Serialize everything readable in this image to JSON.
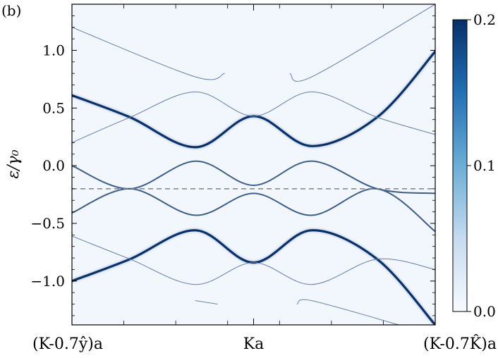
{
  "panel_label": "(b)",
  "chart_data": {
    "type": "heatmap",
    "title": "",
    "xlabel": "",
    "ylabel": "ε/γ₀",
    "xlim": [
      0,
      1
    ],
    "ylim": [
      -1.38,
      1.4
    ],
    "x_ticks": [
      {
        "x": 0.0,
        "label": "(K-0.7ŷ)a"
      },
      {
        "x": 0.5,
        "label": "Ka"
      },
      {
        "x": 1.0,
        "label": "(K-0.7K̂)a"
      }
    ],
    "y_ticks": [
      -1.0,
      -0.5,
      0.0,
      0.5,
      1.0
    ],
    "y_tick_labels": [
      "−1.0",
      "−0.5",
      "0.0",
      "0.5",
      "1.0"
    ],
    "dashed_line": {
      "y": -0.2,
      "color": "#7f7f7f"
    },
    "colorbar": {
      "min": 0.0,
      "max": 0.2,
      "ticks": [
        0.0,
        0.1,
        0.2
      ],
      "tick_labels": [
        "0.0",
        "0.1",
        "0.2"
      ],
      "colors": [
        "#f7fbff",
        "#08306b"
      ]
    },
    "series": [
      {
        "values": [
          [
            0,
            0.61
          ],
          [
            0.16,
            0.42
          ],
          [
            0.34,
            0.16
          ],
          [
            0.5,
            0.43
          ],
          [
            0.66,
            0.17
          ],
          [
            0.84,
            0.42
          ],
          [
            1,
            0.99
          ]
        ],
        "intensity": 0.2
      },
      {
        "values": [
          [
            0,
            -1.0
          ],
          [
            0.16,
            -0.81
          ],
          [
            0.34,
            -0.56
          ],
          [
            0.5,
            -0.84
          ],
          [
            0.66,
            -0.56
          ],
          [
            0.84,
            -0.81
          ],
          [
            1,
            -1.38
          ]
        ],
        "intensity": 0.2
      },
      {
        "values": [
          [
            0,
            0.0
          ],
          [
            0.16,
            -0.2
          ],
          [
            0.34,
            0.04
          ],
          [
            0.5,
            -0.17
          ],
          [
            0.66,
            0.04
          ],
          [
            0.84,
            -0.2
          ],
          [
            1,
            -0.24
          ]
        ],
        "intensity": 0.12
      },
      {
        "values": [
          [
            0,
            -0.41
          ],
          [
            0.16,
            -0.2
          ],
          [
            0.34,
            -0.43
          ],
          [
            0.5,
            -0.24
          ],
          [
            0.66,
            -0.43
          ],
          [
            0.84,
            -0.2
          ],
          [
            1,
            -0.57
          ]
        ],
        "intensity": 0.12
      },
      {
        "values": [
          [
            0,
            0.2
          ],
          [
            0.16,
            0.42
          ],
          [
            0.34,
            0.64
          ],
          [
            0.5,
            0.43
          ],
          [
            0.66,
            0.64
          ],
          [
            0.84,
            0.42
          ],
          [
            1,
            0.27
          ]
        ],
        "intensity": 0.06
      },
      {
        "values": [
          [
            0,
            -0.61
          ],
          [
            0.16,
            -0.81
          ],
          [
            0.34,
            -1.03
          ],
          [
            0.5,
            -0.84
          ],
          [
            0.66,
            -1.03
          ],
          [
            0.84,
            -0.81
          ],
          [
            1,
            -0.9
          ]
        ],
        "intensity": 0.06
      },
      {
        "values": [
          [
            0,
            1.2
          ],
          [
            0.34,
            0.77
          ],
          [
            0.42,
            0.8
          ]
        ],
        "intensity": 0.06
      },
      {
        "values": [
          [
            0.6,
            0.8
          ],
          [
            0.66,
            0.77
          ],
          [
            1,
            1.4
          ]
        ],
        "intensity": 0.06
      },
      {
        "values": [
          [
            0.34,
            -1.17
          ],
          [
            0.4,
            -1.2
          ]
        ],
        "intensity": 0.05
      },
      {
        "values": [
          [
            0.62,
            -1.2
          ],
          [
            0.66,
            -1.17
          ],
          [
            0.9,
            -1.38
          ]
        ],
        "intensity": 0.05
      }
    ]
  }
}
